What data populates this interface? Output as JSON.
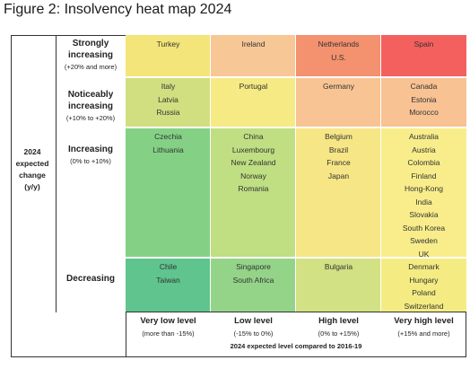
{
  "figure_title": "Figure 2: Insolvency heat map 2024",
  "chart_data": {
    "type": "heatmap",
    "title": "Figure 2: Insolvency heat map 2024",
    "ylabel": [
      "2024",
      "expected",
      "change",
      "(y/y)"
    ],
    "xlabel": "2024 expected level compared to 2016-19",
    "rows": [
      {
        "label": "Strongly increasing",
        "sub": "(+20% and more)"
      },
      {
        "label": "Noticeably increasing",
        "sub": "(+10% to +20%)"
      },
      {
        "label": "Increasing",
        "sub": "(0% to +10%)"
      },
      {
        "label": "Decreasing",
        "sub": ""
      }
    ],
    "columns": [
      {
        "label": "Very low level",
        "sub": "(more than -15%)"
      },
      {
        "label": "Low level",
        "sub": "(-15% to 0%)"
      },
      {
        "label": "High level",
        "sub": "(0% to +15%)"
      },
      {
        "label": "Very high level",
        "sub": "(+15% and more)"
      }
    ],
    "cells": [
      [
        [
          "Turkey"
        ],
        [
          "Ireland"
        ],
        [
          "Netherlands",
          "U.S."
        ],
        [
          "Spain"
        ]
      ],
      [
        [
          "Italy",
          "Latvia",
          "Russia"
        ],
        [
          "Portugal"
        ],
        [
          "Germany"
        ],
        [
          "Canada",
          "Estonia",
          "Morocco"
        ]
      ],
      [
        [
          "Czechia",
          "Lithuania"
        ],
        [
          "China",
          "Luxembourg",
          "New Zealand",
          "Norway",
          "Romania"
        ],
        [
          "Belgium",
          "Brazil",
          "France",
          "Japan"
        ],
        [
          "Australia",
          "Austria",
          "Colombia",
          "Finland",
          "Hong-Kong",
          "India",
          "Slovakia",
          "South Korea",
          "Sweden",
          "UK"
        ]
      ],
      [
        [
          "Chile",
          "Taiwan"
        ],
        [
          "Singapore",
          "South Africa"
        ],
        [
          "Bulgaria"
        ],
        [
          "Denmark",
          "Hungary",
          "Poland",
          "Switzerland"
        ]
      ]
    ]
  },
  "colors": {
    "cells": [
      [
        "#f4e57a",
        "#f8c796",
        "#f4916e",
        "#f4605e"
      ],
      [
        "#d2df80",
        "#f6ea84",
        "#f9c494",
        "#f8c293"
      ],
      [
        "#84d186",
        "#bfdf82",
        "#f6e686",
        "#f8ed8a"
      ],
      [
        "#5fc48e",
        "#94d489",
        "#d1e183",
        "#f4ec82"
      ]
    ],
    "frame": "#333333",
    "grid": "#ffffff"
  }
}
